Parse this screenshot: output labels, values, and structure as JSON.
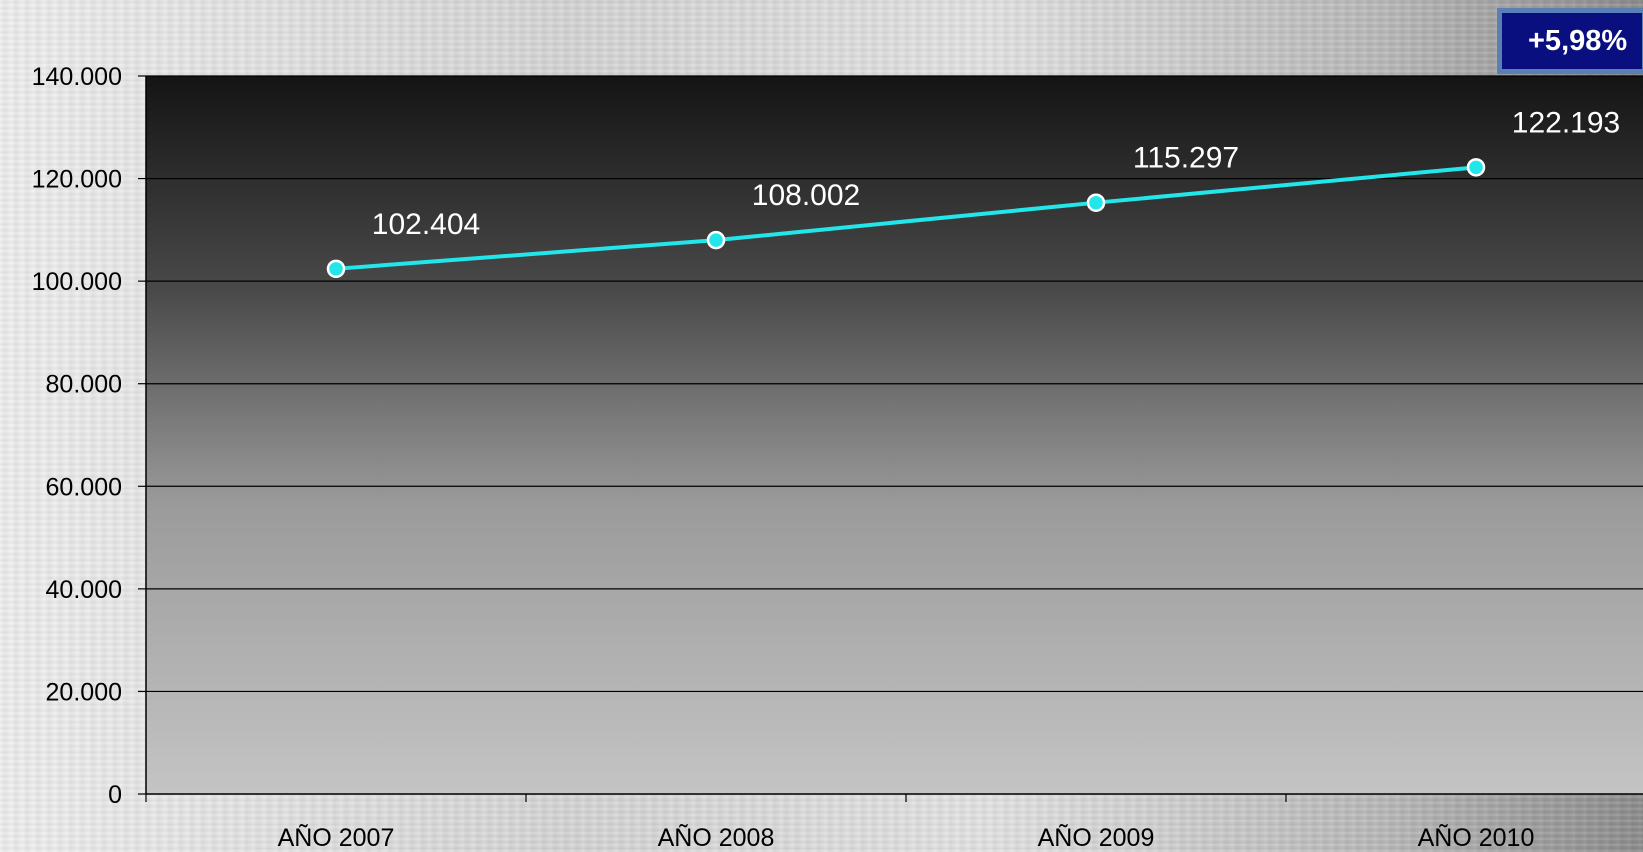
{
  "badge": {
    "text": "+5,98%",
    "color": "#0a0f80"
  },
  "chart_data": {
    "type": "line",
    "categories": [
      "AÑO 2007",
      "AÑO 2008",
      "AÑO 2009",
      "AÑO 2010"
    ],
    "series": [
      {
        "values": [
          102404,
          108002,
          115297,
          122193
        ],
        "data_labels": [
          "102.404",
          "108.002",
          "115.297",
          "122.193"
        ],
        "color": "#22e6ea"
      }
    ],
    "yticks": [
      0,
      20000,
      40000,
      60000,
      80000,
      100000,
      120000,
      140000
    ],
    "ytick_labels": [
      "0",
      "20.000",
      "40.000",
      "60.000",
      "80.000",
      "100.000",
      "120.000",
      "140.000"
    ],
    "ylim": [
      0,
      140000
    ],
    "grid": true,
    "legend": "none"
  }
}
